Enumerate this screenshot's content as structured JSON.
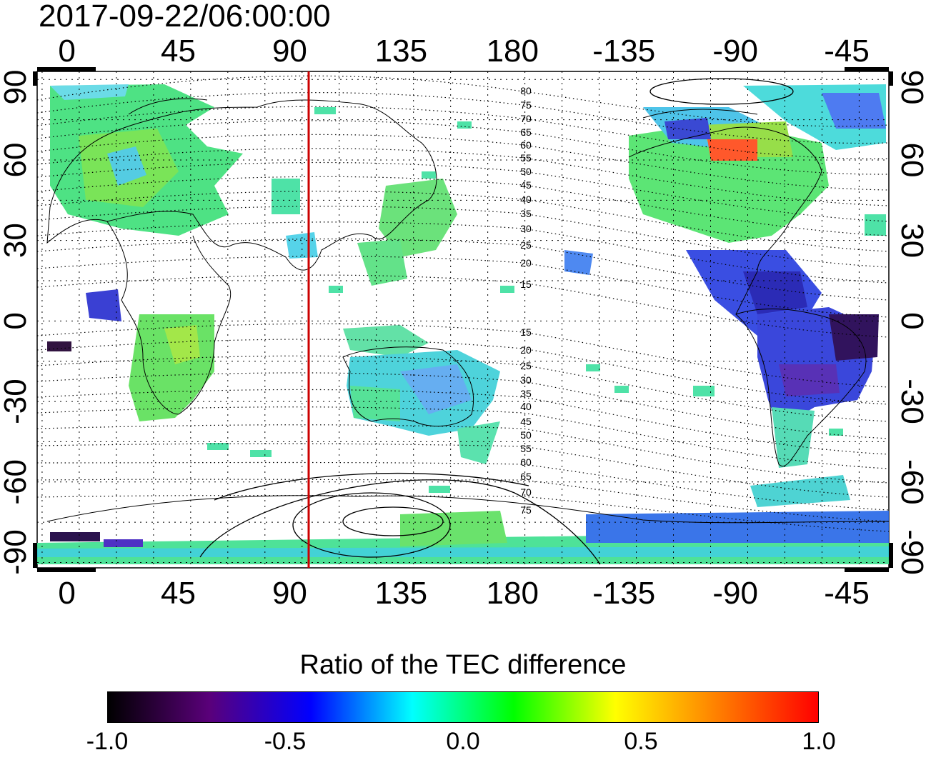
{
  "title": "2017-09-22/06:00:00",
  "map": {
    "lon_ticks_top": [
      "0",
      "45",
      "90",
      "135",
      "180",
      "-135",
      "-90",
      "-45"
    ],
    "lon_ticks_bottom": [
      "0",
      "45",
      "90",
      "135",
      "180",
      "-135",
      "-90",
      "-45"
    ],
    "lat_ticks_left": [
      "90",
      "60",
      "30",
      "0",
      "-30",
      "-60",
      "-90"
    ],
    "lat_ticks_right": [
      "90",
      "60",
      "30",
      "0",
      "-30",
      "-60",
      "-90"
    ],
    "lon_tick_values": [
      0,
      45,
      90,
      135,
      180,
      225,
      270,
      315
    ],
    "lat_tick_values": [
      90,
      60,
      30,
      0,
      -30,
      -60,
      -90
    ],
    "lon_range": [
      -12,
      332
    ],
    "lat_range": [
      -92,
      93
    ],
    "grid": "dotted",
    "marker_line": {
      "longitude": 90,
      "color": "#cc0000"
    },
    "mlat_labels_north": [
      "80",
      "75",
      "70",
      "65",
      "60",
      "55",
      "50",
      "45",
      "40",
      "35",
      "30",
      "25",
      "20",
      "15"
    ],
    "mlat_labels_south": [
      "15",
      "20",
      "25",
      "30",
      "35",
      "40",
      "45",
      "50",
      "55",
      "60",
      "65",
      "70",
      "75"
    ]
  },
  "colorbar": {
    "title": "Ratio of the TEC difference",
    "ticks": [
      "-1.0",
      "-0.5",
      "0.0",
      "0.5",
      "1.0"
    ],
    "range": [
      -1.0,
      1.0
    ],
    "colors": [
      "#000000",
      "#5a007a",
      "#0000ff",
      "#00ffff",
      "#00ff00",
      "#ffff00",
      "#ff8000",
      "#ff0000"
    ]
  }
}
